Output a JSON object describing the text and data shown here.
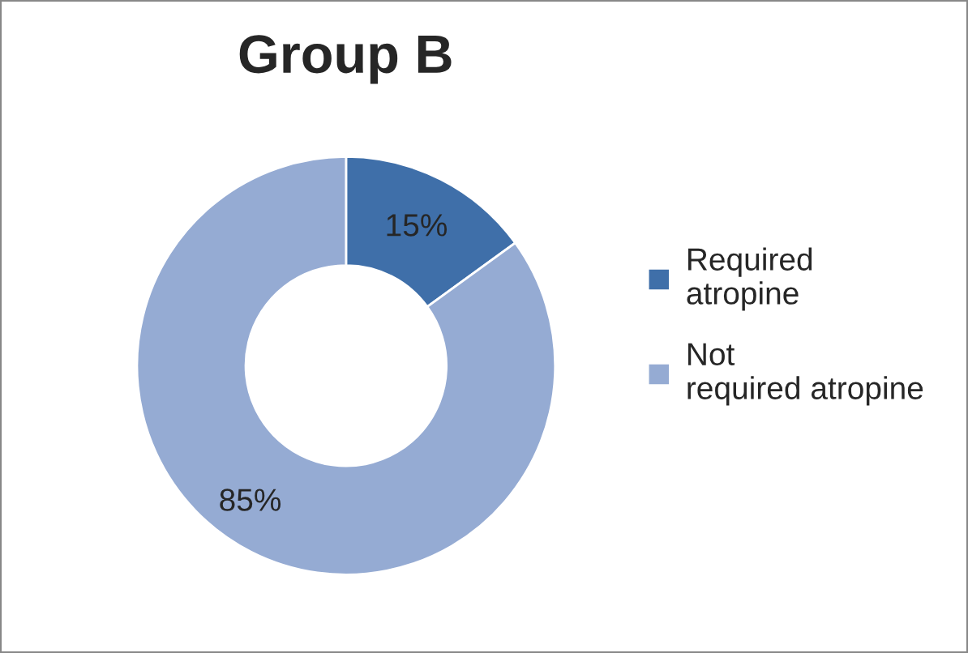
{
  "chart_data": {
    "type": "donut",
    "title": "Group B",
    "categories": [
      "Required atropine",
      "Not required atropine"
    ],
    "values": [
      15,
      85
    ],
    "colors": [
      "#3f6fa9",
      "#95abd3"
    ],
    "value_labels": [
      "15%",
      "85%"
    ],
    "legend": "right"
  }
}
